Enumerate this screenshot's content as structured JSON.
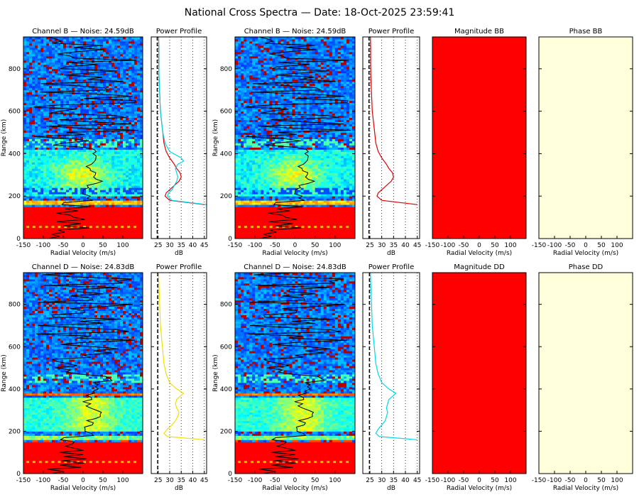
{
  "title": "National Cross Spectra — Date: 18-Oct-2025 23:59:41",
  "colors": {
    "background": "#ffffff",
    "axis": "#000000",
    "magnitude": "#ff0000",
    "phase": "#ffffdc",
    "profile_red": "#e00000",
    "profile_cyan": "#00d8e8",
    "profile_yellow": "#f0e000"
  },
  "chart_data": [
    {
      "id": "spec-b-1",
      "type": "heatmap",
      "title": "Channel B — Noise: 24.59dB",
      "xlabel": "Radial Velocity (m/s)",
      "ylabel": "Range (km)",
      "xlim": [
        -150,
        150
      ],
      "ylim": [
        0,
        950
      ],
      "xticks": [
        "-150",
        "-100",
        "-50",
        "0",
        "50",
        "100"
      ],
      "yticks": [
        "0",
        "200",
        "400",
        "600",
        "800"
      ]
    },
    {
      "id": "prof-b-1",
      "type": "line",
      "title": "Power Profile",
      "xlabel": "dB",
      "xlim": [
        22,
        46
      ],
      "ylim": [
        0,
        950
      ],
      "xticks": [
        "25",
        "30",
        "35",
        "40",
        "45"
      ],
      "noise_line": 24.6,
      "series": [
        {
          "color": "red",
          "range": [
            160,
            180,
            200,
            215,
            230,
            250,
            270,
            290,
            310,
            330,
            350,
            380,
            410,
            450,
            500,
            550,
            600,
            650,
            700,
            760,
            820,
            900,
            950
          ],
          "db": [
            45,
            30,
            28,
            28.5,
            30,
            32,
            34,
            35,
            34.5,
            33,
            32,
            30,
            28.5,
            27.5,
            27,
            26.5,
            26,
            25.8,
            25.6,
            25.4,
            25.3,
            25.3,
            25.2
          ]
        },
        {
          "color": "cyan",
          "range": [
            160,
            180,
            200,
            215,
            230,
            250,
            270,
            290,
            310,
            330,
            350,
            365,
            380,
            410,
            450,
            500,
            550,
            600,
            650,
            700,
            760,
            820,
            900,
            950
          ],
          "db": [
            46,
            31,
            29,
            29.5,
            31,
            32,
            33,
            33.5,
            33,
            32.5,
            33.5,
            36,
            35,
            30,
            28,
            27,
            26.5,
            26,
            25.8,
            25.6,
            25.4,
            25.3,
            25.3,
            25.2
          ]
        }
      ]
    },
    {
      "id": "spec-b-2",
      "type": "heatmap",
      "title": "Channel B — Noise: 24.59dB",
      "xlabel": "Radial Velocity (m/s)",
      "ylabel": "Range (km)",
      "xlim": [
        -150,
        150
      ],
      "ylim": [
        0,
        950
      ],
      "xticks": [
        "-150",
        "-100",
        "-50",
        "0",
        "50",
        "100"
      ],
      "yticks": [
        "0",
        "200",
        "400",
        "600",
        "800"
      ]
    },
    {
      "id": "prof-b-2",
      "type": "line",
      "title": "Power Profile",
      "xlabel": "dB",
      "xlim": [
        22,
        46
      ],
      "ylim": [
        0,
        950
      ],
      "xticks": [
        "25",
        "30",
        "35",
        "40",
        "45"
      ],
      "noise_line": 24.6,
      "series": [
        {
          "color": "red",
          "range": [
            160,
            180,
            200,
            215,
            230,
            250,
            270,
            290,
            310,
            330,
            350,
            380,
            410,
            450,
            500,
            550,
            600,
            650,
            700,
            760,
            820,
            900,
            950
          ],
          "db": [
            45,
            30,
            28,
            28.5,
            30,
            32,
            34,
            35,
            34.5,
            33,
            32,
            30,
            28.5,
            27.5,
            27,
            26.5,
            26,
            25.8,
            25.6,
            25.4,
            25.3,
            25.3,
            25.2
          ]
        }
      ]
    },
    {
      "id": "mag-b",
      "type": "heatmap",
      "title": "Magnitude BB",
      "xlabel": "Radial Velocity (m/s)",
      "xlim": [
        -150,
        150
      ],
      "ylim": [
        0,
        950
      ],
      "xticks": [
        "-150",
        "-100",
        "-50",
        "0",
        "50",
        "100"
      ],
      "fill": "red"
    },
    {
      "id": "phase-b",
      "type": "heatmap",
      "title": "Phase BB",
      "xlabel": "Radial Velocity (m/s)",
      "xlim": [
        -150,
        150
      ],
      "ylim": [
        0,
        950
      ],
      "xticks": [
        "-150",
        "-100",
        "-50",
        "0",
        "50",
        "100"
      ],
      "fill": "phase"
    },
    {
      "id": "spec-d-1",
      "type": "heatmap",
      "title": "Channel D — Noise: 24.83dB",
      "xlabel": "Radial Velocity (m/s)",
      "ylabel": "Range (km)",
      "xlim": [
        -150,
        150
      ],
      "ylim": [
        0,
        950
      ],
      "xticks": [
        "-150",
        "-100",
        "-50",
        "0",
        "50",
        "100"
      ],
      "yticks": [
        "0",
        "200",
        "400",
        "600",
        "800"
      ]
    },
    {
      "id": "prof-d-1",
      "type": "line",
      "title": "Power Profile",
      "xlabel": "dB",
      "xlim": [
        22,
        46
      ],
      "ylim": [
        0,
        950
      ],
      "xticks": [
        "25",
        "30",
        "35",
        "40",
        "45"
      ],
      "noise_line": 24.8,
      "series": [
        {
          "color": "yellow",
          "range": [
            160,
            175,
            190,
            210,
            230,
            250,
            270,
            290,
            310,
            330,
            350,
            365,
            380,
            400,
            430,
            470,
            520,
            580,
            640,
            700,
            760,
            820,
            880,
            950
          ],
          "db": [
            45,
            29,
            27.5,
            29,
            31,
            32.5,
            33.5,
            34,
            33,
            32.5,
            33,
            34.5,
            36,
            33,
            30,
            28.5,
            27.5,
            27,
            26.5,
            26,
            25.8,
            25.6,
            25.4,
            25.2
          ]
        }
      ]
    },
    {
      "id": "spec-d-2",
      "type": "heatmap",
      "title": "Channel D — Noise: 24.83dB",
      "xlabel": "Radial Velocity (m/s)",
      "ylabel": "Range (km)",
      "xlim": [
        -150,
        150
      ],
      "ylim": [
        0,
        950
      ],
      "xticks": [
        "-150",
        "-100",
        "-50",
        "0",
        "50",
        "100"
      ],
      "yticks": [
        "0",
        "200",
        "400",
        "600",
        "800"
      ]
    },
    {
      "id": "prof-d-2",
      "type": "line",
      "title": "Power Profile",
      "xlabel": "dB",
      "xlim": [
        22,
        46
      ],
      "ylim": [
        0,
        950
      ],
      "xticks": [
        "25",
        "30",
        "35",
        "40",
        "45"
      ],
      "noise_line": 24.8,
      "series": [
        {
          "color": "cyan",
          "range": [
            160,
            175,
            190,
            210,
            230,
            250,
            270,
            290,
            310,
            330,
            350,
            365,
            380,
            400,
            430,
            470,
            520,
            580,
            640,
            700,
            760,
            820,
            880,
            950
          ],
          "db": [
            45,
            29,
            27.5,
            28.5,
            30,
            31.5,
            32,
            32.5,
            32,
            32.5,
            33,
            34.5,
            36,
            33,
            30,
            28.5,
            27.5,
            27,
            26.5,
            26,
            25.8,
            25.6,
            25.4,
            25.2
          ]
        }
      ]
    },
    {
      "id": "mag-d",
      "type": "heatmap",
      "title": "Magnitude DD",
      "xlabel": "Radial Velocity (m/s)",
      "xlim": [
        -150,
        150
      ],
      "ylim": [
        0,
        950
      ],
      "xticks": [
        "-150",
        "-100",
        "-50",
        "0",
        "50",
        "100"
      ],
      "fill": "red"
    },
    {
      "id": "phase-d",
      "type": "heatmap",
      "title": "Phase DD",
      "xlabel": "Radial Velocity (m/s)",
      "xlim": [
        -150,
        150
      ],
      "ylim": [
        0,
        950
      ],
      "xticks": [
        "-150",
        "-100",
        "-50",
        "0",
        "50",
        "100"
      ],
      "fill": "phase"
    }
  ]
}
